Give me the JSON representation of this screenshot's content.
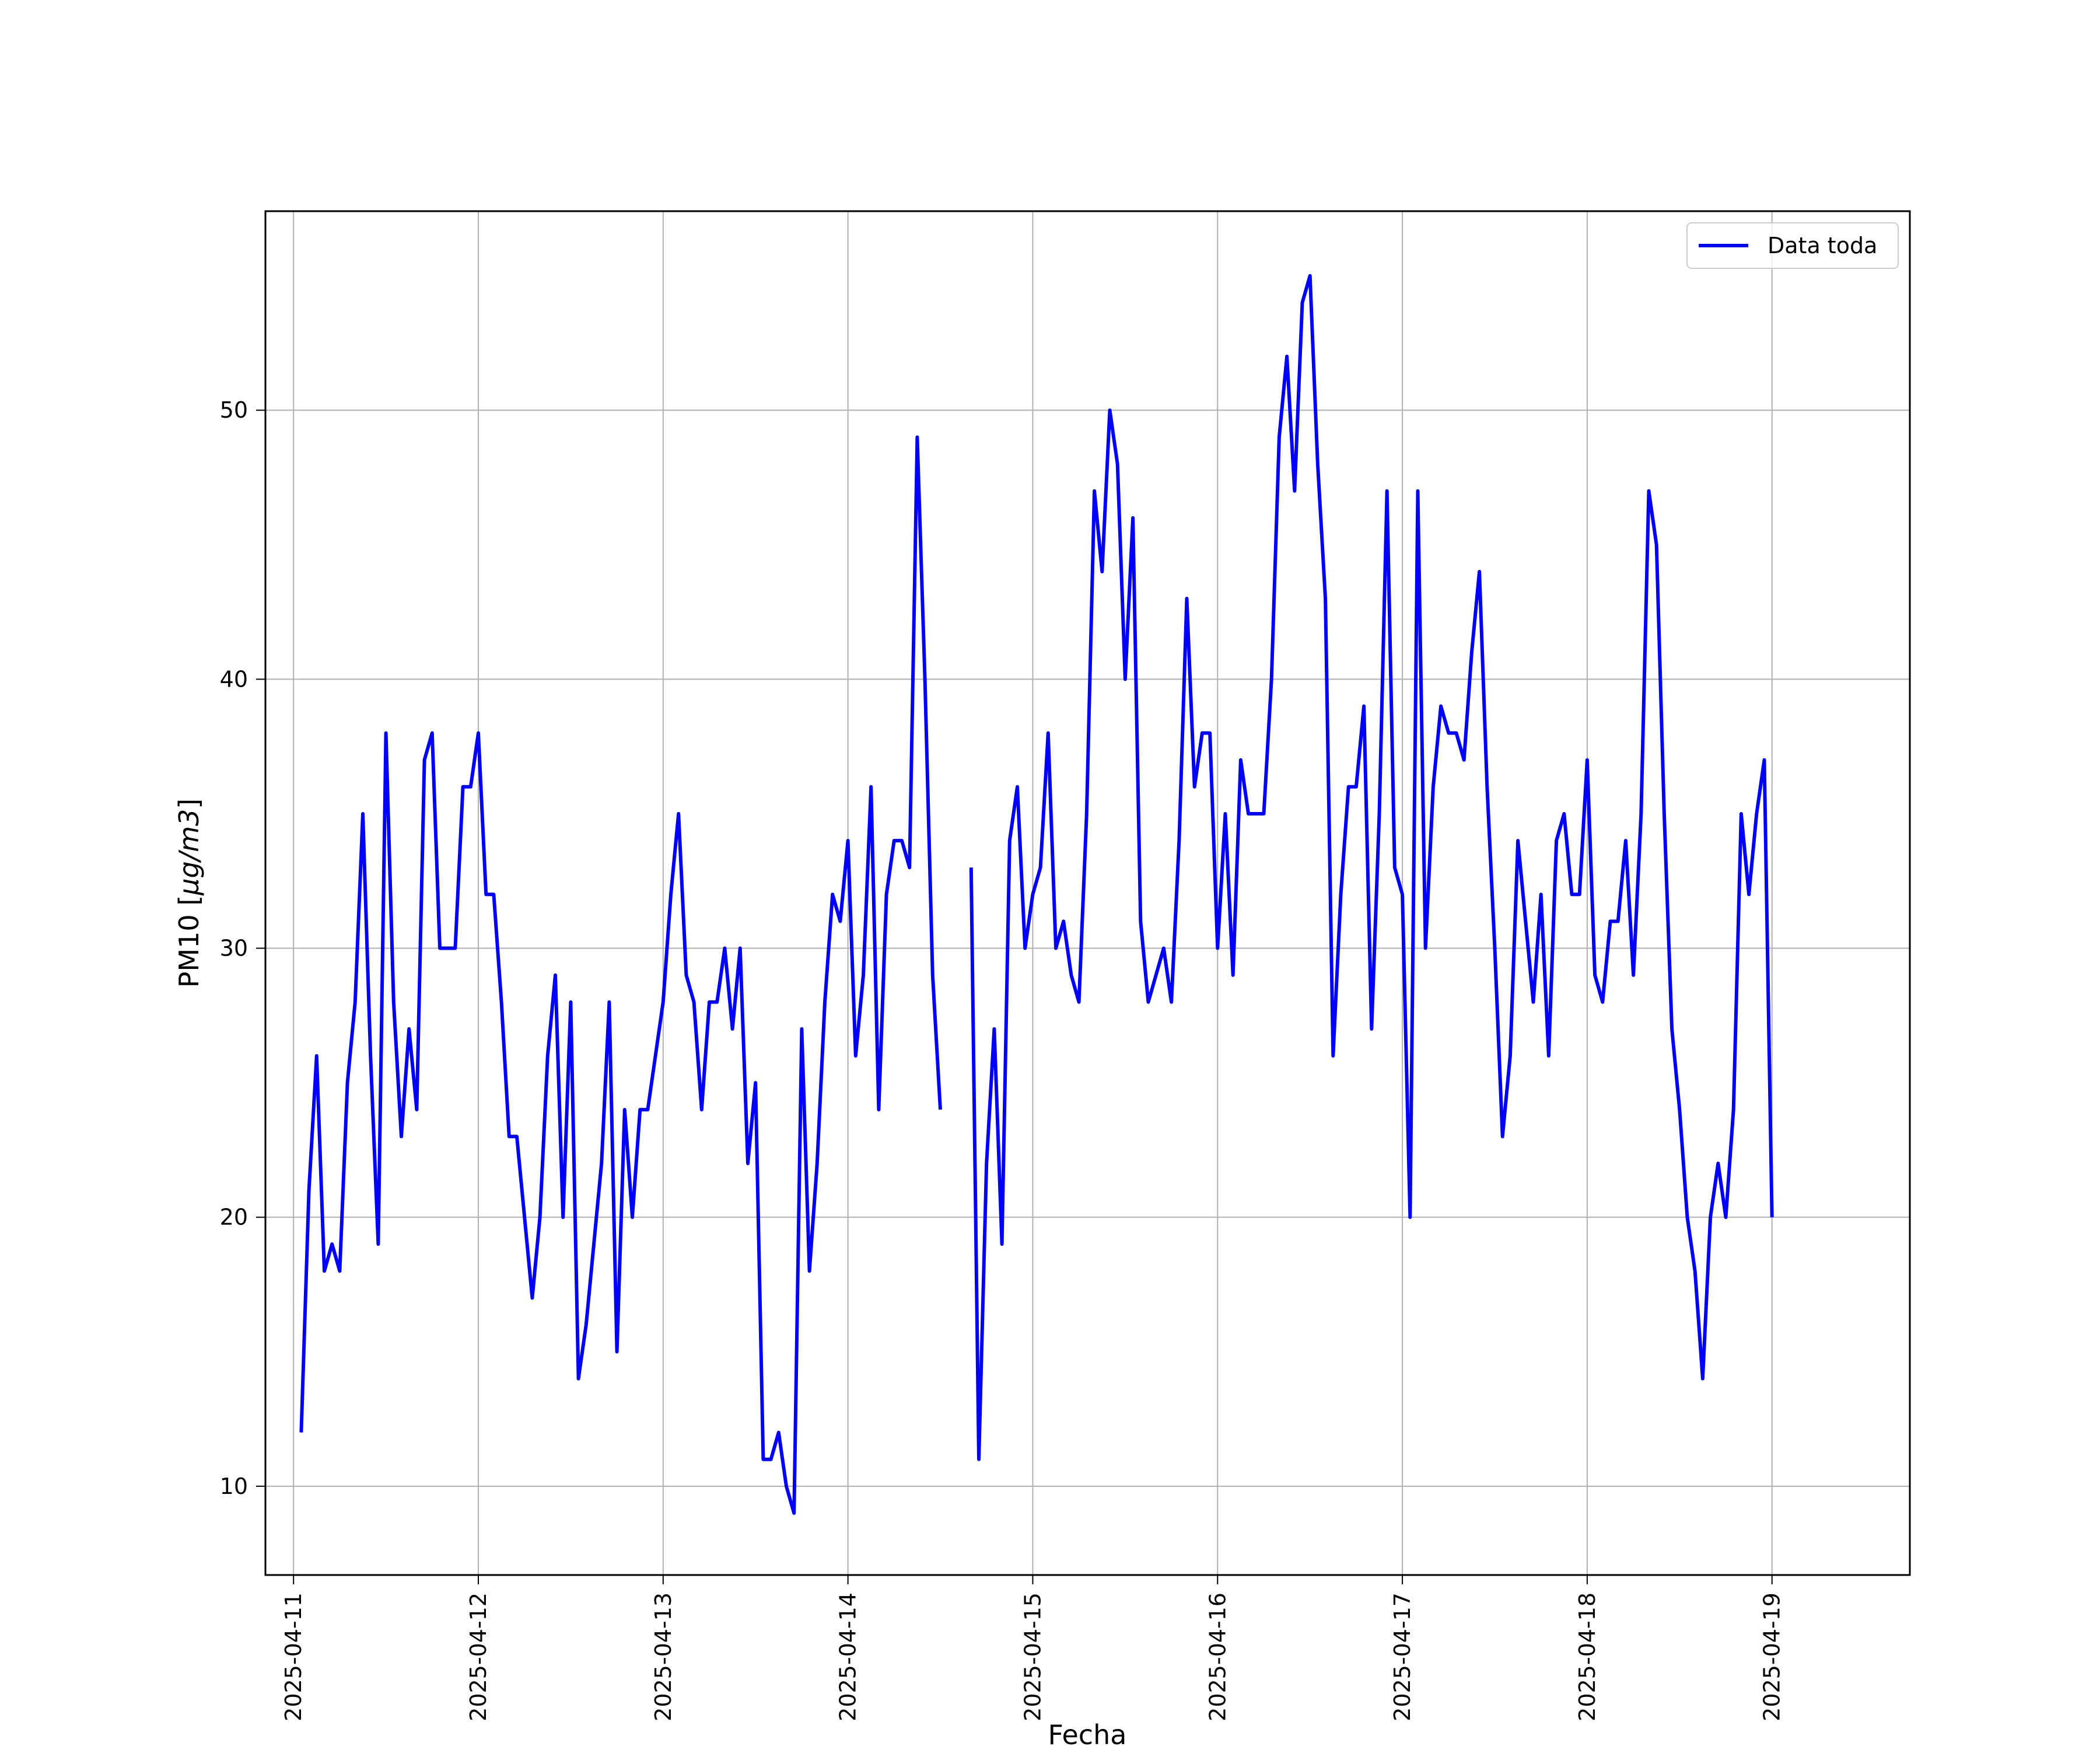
{
  "chart_data": {
    "type": "line",
    "title": "",
    "xlabel": "Fecha",
    "ylabel_text": "PM10 [",
    "ylabel_unit": "µg/m3",
    "ylabel_close": "]",
    "x_ticks": [
      "2025-04-11",
      "2025-04-12",
      "2025-04-13",
      "2025-04-14",
      "2025-04-15",
      "2025-04-16",
      "2025-04-17",
      "2025-04-18",
      "2025-04-19"
    ],
    "y_ticks": [
      10,
      20,
      30,
      40,
      50
    ],
    "xlim": [
      "2025-04-10 20:21",
      "2025-04-19 17:54"
    ],
    "ylim": [
      6.7,
      57.4
    ],
    "grid": true,
    "legend_position": "top-right",
    "series": [
      {
        "name": "Data toda",
        "color": "#0000ff",
        "points": [
          [
            "2025-04-11 01:00",
            12
          ],
          [
            "2025-04-11 02:00",
            21
          ],
          [
            "2025-04-11 03:00",
            26
          ],
          [
            "2025-04-11 04:00",
            18
          ],
          [
            "2025-04-11 05:00",
            19
          ],
          [
            "2025-04-11 06:00",
            18
          ],
          [
            "2025-04-11 07:00",
            25
          ],
          [
            "2025-04-11 08:00",
            28
          ],
          [
            "2025-04-11 09:00",
            35
          ],
          [
            "2025-04-11 10:00",
            26
          ],
          [
            "2025-04-11 11:00",
            19
          ],
          [
            "2025-04-11 12:00",
            38
          ],
          [
            "2025-04-11 13:00",
            28
          ],
          [
            "2025-04-11 14:00",
            23
          ],
          [
            "2025-04-11 15:00",
            27
          ],
          [
            "2025-04-11 16:00",
            24
          ],
          [
            "2025-04-11 17:00",
            37
          ],
          [
            "2025-04-11 18:00",
            38
          ],
          [
            "2025-04-11 19:00",
            30
          ],
          [
            "2025-04-11 20:00",
            30
          ],
          [
            "2025-04-11 21:00",
            30
          ],
          [
            "2025-04-11 22:00",
            36
          ],
          [
            "2025-04-11 23:00",
            36
          ],
          [
            "2025-04-12 00:00",
            38
          ],
          [
            "2025-04-12 01:00",
            32
          ],
          [
            "2025-04-12 02:00",
            32
          ],
          [
            "2025-04-12 03:00",
            28
          ],
          [
            "2025-04-12 04:00",
            23
          ],
          [
            "2025-04-12 05:00",
            23
          ],
          [
            "2025-04-12 06:00",
            20
          ],
          [
            "2025-04-12 07:00",
            17
          ],
          [
            "2025-04-12 08:00",
            20
          ],
          [
            "2025-04-12 09:00",
            26
          ],
          [
            "2025-04-12 10:00",
            29
          ],
          [
            "2025-04-12 11:00",
            20
          ],
          [
            "2025-04-12 12:00",
            28
          ],
          [
            "2025-04-12 13:00",
            14
          ],
          [
            "2025-04-12 14:00",
            16
          ],
          [
            "2025-04-12 15:00",
            19
          ],
          [
            "2025-04-12 16:00",
            22
          ],
          [
            "2025-04-12 17:00",
            28
          ],
          [
            "2025-04-12 18:00",
            15
          ],
          [
            "2025-04-12 19:00",
            24
          ],
          [
            "2025-04-12 20:00",
            20
          ],
          [
            "2025-04-12 21:00",
            24
          ],
          [
            "2025-04-12 22:00",
            24
          ],
          [
            "2025-04-12 23:00",
            26
          ],
          [
            "2025-04-13 00:00",
            28
          ],
          [
            "2025-04-13 01:00",
            32
          ],
          [
            "2025-04-13 02:00",
            35
          ],
          [
            "2025-04-13 03:00",
            29
          ],
          [
            "2025-04-13 04:00",
            28
          ],
          [
            "2025-04-13 05:00",
            24
          ],
          [
            "2025-04-13 06:00",
            28
          ],
          [
            "2025-04-13 07:00",
            28
          ],
          [
            "2025-04-13 08:00",
            30
          ],
          [
            "2025-04-13 09:00",
            27
          ],
          [
            "2025-04-13 10:00",
            30
          ],
          [
            "2025-04-13 11:00",
            22
          ],
          [
            "2025-04-13 12:00",
            25
          ],
          [
            "2025-04-13 13:00",
            11
          ],
          [
            "2025-04-13 14:00",
            11
          ],
          [
            "2025-04-13 15:00",
            12
          ],
          [
            "2025-04-13 16:00",
            10
          ],
          [
            "2025-04-13 17:00",
            9
          ],
          [
            "2025-04-13 18:00",
            27
          ],
          [
            "2025-04-13 19:00",
            18
          ],
          [
            "2025-04-13 20:00",
            22
          ],
          [
            "2025-04-13 21:00",
            28
          ],
          [
            "2025-04-13 22:00",
            32
          ],
          [
            "2025-04-13 23:00",
            31
          ],
          [
            "2025-04-14 00:00",
            34
          ],
          [
            "2025-04-14 01:00",
            26
          ],
          [
            "2025-04-14 02:00",
            29
          ],
          [
            "2025-04-14 03:00",
            36
          ],
          [
            "2025-04-14 04:00",
            24
          ],
          [
            "2025-04-14 05:00",
            32
          ],
          [
            "2025-04-14 06:00",
            34
          ],
          [
            "2025-04-14 07:00",
            34
          ],
          [
            "2025-04-14 08:00",
            33
          ],
          [
            "2025-04-14 09:00",
            49
          ],
          [
            "2025-04-14 10:00",
            40
          ],
          [
            "2025-04-14 11:00",
            29
          ],
          [
            "2025-04-14 12:00",
            24
          ],
          null,
          [
            "2025-04-14 16:00",
            33
          ],
          [
            "2025-04-14 17:00",
            11
          ],
          [
            "2025-04-14 18:00",
            22
          ],
          [
            "2025-04-14 19:00",
            27
          ],
          [
            "2025-04-14 20:00",
            19
          ],
          [
            "2025-04-14 21:00",
            34
          ],
          [
            "2025-04-14 22:00",
            36
          ],
          [
            "2025-04-14 23:00",
            30
          ],
          [
            "2025-04-15 00:00",
            32
          ],
          [
            "2025-04-15 01:00",
            33
          ],
          [
            "2025-04-15 02:00",
            38
          ],
          [
            "2025-04-15 03:00",
            30
          ],
          [
            "2025-04-15 04:00",
            31
          ],
          [
            "2025-04-15 05:00",
            29
          ],
          [
            "2025-04-15 06:00",
            28
          ],
          [
            "2025-04-15 07:00",
            35
          ],
          [
            "2025-04-15 08:00",
            47
          ],
          [
            "2025-04-15 09:00",
            44
          ],
          [
            "2025-04-15 10:00",
            50
          ],
          [
            "2025-04-15 11:00",
            48
          ],
          [
            "2025-04-15 12:00",
            40
          ],
          [
            "2025-04-15 13:00",
            46
          ],
          [
            "2025-04-15 14:00",
            31
          ],
          [
            "2025-04-15 15:00",
            28
          ],
          [
            "2025-04-15 16:00",
            29
          ],
          [
            "2025-04-15 17:00",
            30
          ],
          [
            "2025-04-15 18:00",
            28
          ],
          [
            "2025-04-15 19:00",
            34
          ],
          [
            "2025-04-15 20:00",
            43
          ],
          [
            "2025-04-15 21:00",
            36
          ],
          [
            "2025-04-15 22:00",
            38
          ],
          [
            "2025-04-15 23:00",
            38
          ],
          [
            "2025-04-16 00:00",
            30
          ],
          [
            "2025-04-16 01:00",
            35
          ],
          [
            "2025-04-16 02:00",
            29
          ],
          [
            "2025-04-16 03:00",
            37
          ],
          [
            "2025-04-16 04:00",
            35
          ],
          [
            "2025-04-16 05:00",
            35
          ],
          [
            "2025-04-16 06:00",
            35
          ],
          [
            "2025-04-16 07:00",
            40
          ],
          [
            "2025-04-16 08:00",
            49
          ],
          [
            "2025-04-16 09:00",
            52
          ],
          [
            "2025-04-16 10:00",
            47
          ],
          [
            "2025-04-16 11:00",
            54
          ],
          [
            "2025-04-16 12:00",
            55
          ],
          [
            "2025-04-16 13:00",
            48
          ],
          [
            "2025-04-16 14:00",
            43
          ],
          [
            "2025-04-16 15:00",
            26
          ],
          [
            "2025-04-16 16:00",
            32
          ],
          [
            "2025-04-16 17:00",
            36
          ],
          [
            "2025-04-16 18:00",
            36
          ],
          [
            "2025-04-16 19:00",
            39
          ],
          [
            "2025-04-16 20:00",
            27
          ],
          [
            "2025-04-16 21:00",
            35
          ],
          [
            "2025-04-16 22:00",
            47
          ],
          [
            "2025-04-16 23:00",
            33
          ],
          [
            "2025-04-17 00:00",
            32
          ],
          [
            "2025-04-17 01:00",
            20
          ],
          [
            "2025-04-17 02:00",
            47
          ],
          [
            "2025-04-17 03:00",
            30
          ],
          [
            "2025-04-17 04:00",
            36
          ],
          [
            "2025-04-17 05:00",
            39
          ],
          [
            "2025-04-17 06:00",
            38
          ],
          [
            "2025-04-17 07:00",
            38
          ],
          [
            "2025-04-17 08:00",
            37
          ],
          [
            "2025-04-17 09:00",
            41
          ],
          [
            "2025-04-17 10:00",
            44
          ],
          [
            "2025-04-17 11:00",
            36
          ],
          [
            "2025-04-17 12:00",
            30
          ],
          [
            "2025-04-17 13:00",
            23
          ],
          [
            "2025-04-17 14:00",
            26
          ],
          [
            "2025-04-17 15:00",
            34
          ],
          [
            "2025-04-17 16:00",
            31
          ],
          [
            "2025-04-17 17:00",
            28
          ],
          [
            "2025-04-17 18:00",
            32
          ],
          [
            "2025-04-17 19:00",
            26
          ],
          [
            "2025-04-17 20:00",
            34
          ],
          [
            "2025-04-17 21:00",
            35
          ],
          [
            "2025-04-17 22:00",
            32
          ],
          [
            "2025-04-17 23:00",
            32
          ],
          [
            "2025-04-18 00:00",
            37
          ],
          [
            "2025-04-18 01:00",
            29
          ],
          [
            "2025-04-18 02:00",
            28
          ],
          [
            "2025-04-18 03:00",
            31
          ],
          [
            "2025-04-18 04:00",
            31
          ],
          [
            "2025-04-18 05:00",
            34
          ],
          [
            "2025-04-18 06:00",
            29
          ],
          [
            "2025-04-18 07:00",
            35
          ],
          [
            "2025-04-18 08:00",
            47
          ],
          [
            "2025-04-18 09:00",
            45
          ],
          [
            "2025-04-18 10:00",
            35
          ],
          [
            "2025-04-18 11:00",
            27
          ],
          [
            "2025-04-18 12:00",
            24
          ],
          [
            "2025-04-18 13:00",
            20
          ],
          [
            "2025-04-18 14:00",
            18
          ],
          [
            "2025-04-18 15:00",
            14
          ],
          [
            "2025-04-18 16:00",
            20
          ],
          [
            "2025-04-18 17:00",
            22
          ],
          [
            "2025-04-18 18:00",
            20
          ],
          [
            "2025-04-18 19:00",
            24
          ],
          [
            "2025-04-18 20:00",
            35
          ],
          [
            "2025-04-18 21:00",
            32
          ],
          [
            "2025-04-18 22:00",
            35
          ],
          [
            "2025-04-18 23:00",
            37
          ],
          [
            "2025-04-19 00:00",
            20
          ]
        ]
      }
    ]
  }
}
